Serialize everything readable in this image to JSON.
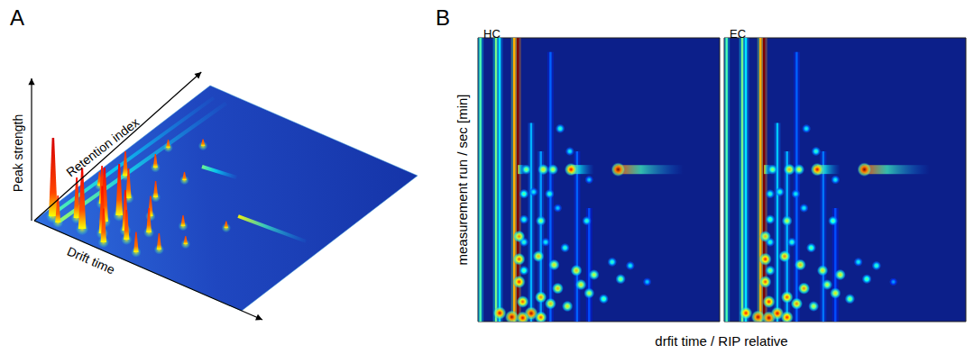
{
  "chart_data": [
    {
      "type": "surface3d",
      "title": "A",
      "x_label": "Drift time",
      "y_label": "Retention index",
      "z_label": "Peak strength",
      "xlim": [
        0,
        100
      ],
      "ylim": [
        0,
        100
      ],
      "zlim": [
        0,
        100
      ],
      "tick_labels": false,
      "peaks": [
        [
          22,
          70,
          5
        ],
        [
          12,
          62,
          6
        ],
        [
          16,
          50,
          10
        ],
        [
          30,
          50,
          6
        ],
        [
          62,
          36,
          5
        ],
        [
          10,
          40,
          18
        ],
        [
          28,
          36,
          12
        ],
        [
          20,
          30,
          22
        ],
        [
          6,
          30,
          10
        ],
        [
          48,
          28,
          8
        ],
        [
          34,
          26,
          15
        ],
        [
          56,
          20,
          6
        ],
        [
          14,
          22,
          28
        ],
        [
          24,
          20,
          38
        ],
        [
          40,
          18,
          18
        ],
        [
          32,
          14,
          30
        ],
        [
          22,
          14,
          40
        ],
        [
          50,
          12,
          12
        ],
        [
          12,
          10,
          30
        ],
        [
          36,
          10,
          22
        ],
        [
          26,
          8,
          35
        ],
        [
          4,
          6,
          58
        ],
        [
          18,
          6,
          45
        ],
        [
          44,
          6,
          15
        ],
        [
          8,
          4,
          20
        ],
        [
          30,
          4,
          25
        ]
      ],
      "streaks": [
        [
          3,
          5,
          6,
          95,
          30
        ],
        [
          8,
          5,
          12,
          95,
          45
        ],
        [
          61,
          44,
          92,
          46,
          70
        ],
        [
          30,
          60,
          45,
          62,
          35
        ]
      ]
    },
    {
      "type": "heatmap",
      "title": "B",
      "x_label": "drfit time / RIP relative",
      "y_label": "measurement run / sec [min]",
      "xlim": [
        0,
        100
      ],
      "ylim": [
        0,
        100
      ],
      "zlim": [
        0,
        100
      ],
      "tick_labels": false,
      "panels": [
        {
          "name": "HC",
          "spots": [
            [
              20,
              53.6,
              55
            ],
            [
              27,
              53.6,
              65
            ],
            [
              31,
              53.6,
              60
            ],
            [
              38.5,
              53.6,
              88
            ],
            [
              58,
              53.6,
              100
            ],
            [
              34,
              68,
              45
            ],
            [
              38,
              60,
              40
            ],
            [
              19,
              45,
              50
            ],
            [
              19,
              36,
              45
            ],
            [
              19,
              28,
              45
            ],
            [
              19,
              18,
              50
            ],
            [
              26,
              35.5,
              55
            ],
            [
              45,
              35.5,
              45
            ],
            [
              23,
              45.7,
              40
            ],
            [
              29.6,
              45,
              45
            ],
            [
              46,
              50,
              35
            ],
            [
              33,
              40,
              35
            ],
            [
              25,
              23,
              70
            ],
            [
              31.5,
              20,
              65
            ],
            [
              40.7,
              18,
              70
            ],
            [
              48,
              16.5,
              60
            ],
            [
              59,
              15,
              55
            ],
            [
              33,
              11.7,
              70
            ],
            [
              42.6,
              13,
              65
            ],
            [
              26,
              8.6,
              75
            ],
            [
              18.5,
              7,
              80
            ],
            [
              30,
              6.3,
              70
            ],
            [
              37,
              5.4,
              65
            ],
            [
              46,
              10,
              60
            ],
            [
              63,
              19.7,
              40
            ],
            [
              55.5,
              21,
              45
            ],
            [
              52,
              8,
              50
            ],
            [
              70,
              14,
              35
            ],
            [
              36,
              26,
              45
            ],
            [
              28,
              28,
              40
            ],
            [
              14,
              1.6,
              95
            ],
            [
              22,
              2.9,
              95
            ],
            [
              18.5,
              1.3,
              90
            ],
            [
              9,
              3,
              90
            ],
            [
              26,
              1.5,
              80
            ],
            [
              17,
              14,
              85
            ],
            [
              17,
              22,
              80
            ],
            [
              17,
              30,
              75
            ]
          ],
          "streaks": [
            [
              1,
              0,
              1,
              100,
              45
            ],
            [
              7.5,
              0,
              7.5,
              100,
              50
            ],
            [
              9,
              0,
              9,
              100,
              35
            ],
            [
              15,
              0,
              15,
              100,
              70
            ],
            [
              16.5,
              1,
              16.5,
              100,
              100
            ],
            [
              22,
              0,
              22,
              70,
              30
            ],
            [
              26,
              0,
              26,
              60,
              28
            ],
            [
              30,
              0,
              30,
              95,
              22
            ],
            [
              41,
              0,
              41,
              60,
              22
            ],
            [
              46,
              0,
              46,
              40,
              20
            ],
            [
              16.5,
              53.6,
              20,
              53.6,
              60
            ],
            [
              38.5,
              53.6,
              48,
              53.6,
              70
            ],
            [
              58,
              53.6,
              85,
              53.6,
              80
            ]
          ]
        },
        {
          "name": "EC",
          "spots": [
            [
              20,
              53.6,
              55
            ],
            [
              27,
              53.6,
              70
            ],
            [
              31,
              53.6,
              62
            ],
            [
              38.5,
              53.6,
              90
            ],
            [
              58,
              53.6,
              100
            ],
            [
              34,
              68,
              40
            ],
            [
              38,
              60,
              45
            ],
            [
              19,
              45,
              45
            ],
            [
              19,
              36,
              50
            ],
            [
              19,
              28,
              45
            ],
            [
              19,
              18,
              55
            ],
            [
              26,
              35.5,
              60
            ],
            [
              45,
              35.5,
              50
            ],
            [
              23,
              45.7,
              45
            ],
            [
              29.6,
              45,
              40
            ],
            [
              46,
              50,
              40
            ],
            [
              33,
              40,
              40
            ],
            [
              25,
              23,
              75
            ],
            [
              31.5,
              20,
              70
            ],
            [
              40.7,
              18,
              65
            ],
            [
              48,
              16.5,
              65
            ],
            [
              59,
              15,
              50
            ],
            [
              33,
              11.7,
              75
            ],
            [
              42.6,
              13,
              60
            ],
            [
              26,
              8.6,
              80
            ],
            [
              18.5,
              7,
              85
            ],
            [
              30,
              6.3,
              75
            ],
            [
              37,
              5.4,
              60
            ],
            [
              46,
              10,
              65
            ],
            [
              63,
              19.7,
              45
            ],
            [
              55.5,
              21,
              40
            ],
            [
              52,
              8,
              55
            ],
            [
              70,
              14,
              30
            ],
            [
              36,
              26,
              50
            ],
            [
              28,
              28,
              45
            ],
            [
              14,
              1.6,
              95
            ],
            [
              22,
              2.9,
              90
            ],
            [
              18.5,
              1.3,
              95
            ],
            [
              9,
              3,
              85
            ],
            [
              26,
              1.5,
              85
            ],
            [
              17,
              14,
              80
            ],
            [
              17,
              22,
              85
            ],
            [
              17,
              30,
              70
            ]
          ],
          "streaks": [
            [
              1,
              0,
              1,
              100,
              45
            ],
            [
              7.5,
              0,
              7.5,
              100,
              50
            ],
            [
              9,
              0,
              9,
              100,
              35
            ],
            [
              15,
              0,
              15,
              100,
              70
            ],
            [
              16.5,
              1,
              16.5,
              100,
              100
            ],
            [
              22,
              0,
              22,
              70,
              32
            ],
            [
              26,
              0,
              26,
              60,
              30
            ],
            [
              30,
              0,
              30,
              95,
              22
            ],
            [
              41,
              0,
              41,
              60,
              24
            ],
            [
              46,
              0,
              46,
              40,
              20
            ],
            [
              16.5,
              53.6,
              20,
              53.6,
              60
            ],
            [
              38.5,
              53.6,
              48,
              53.6,
              72
            ],
            [
              58,
              53.6,
              85,
              53.6,
              80
            ]
          ]
        }
      ]
    }
  ]
}
